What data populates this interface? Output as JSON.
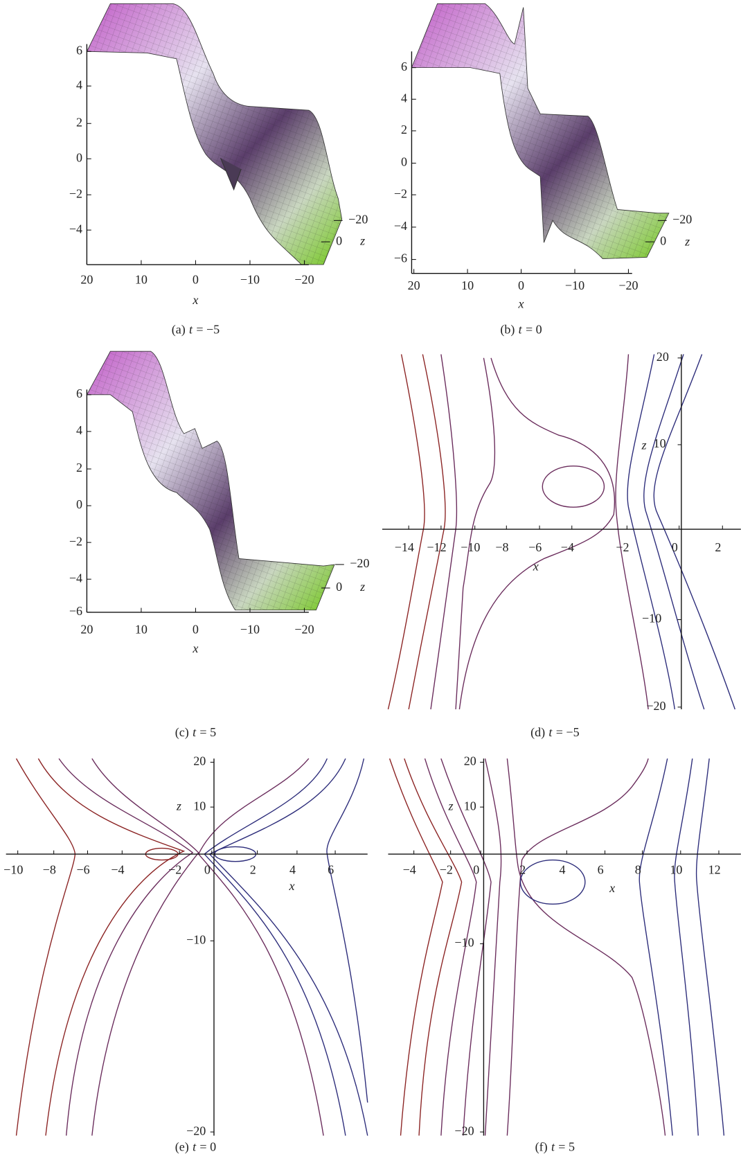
{
  "figure": {
    "panels": [
      {
        "caption": {
          "tag": "(a)",
          "var": "t",
          "eq": "= −5"
        },
        "x_label": "x",
        "z_label": "z",
        "x_ticks": [
          "20",
          "10",
          "0",
          "−10",
          "−20"
        ],
        "y_ticks": [
          "6",
          "4",
          "2",
          "0",
          "−2",
          "−4"
        ],
        "z_ticks": [
          "−20",
          "0"
        ]
      },
      {
        "caption": {
          "tag": "(b)",
          "var": "t",
          "eq": "= 0"
        },
        "x_label": "x",
        "z_label": "z",
        "x_ticks": [
          "20",
          "10",
          "0",
          "−10",
          "−20"
        ],
        "y_ticks": [
          "6",
          "4",
          "2",
          "0",
          "−2",
          "−4",
          "−6"
        ],
        "z_ticks": [
          "−20",
          "0"
        ]
      },
      {
        "caption": {
          "tag": "(c)",
          "var": "t",
          "eq": "= 5"
        },
        "x_label": "x",
        "z_label": "z",
        "x_ticks": [
          "20",
          "10",
          "0",
          "−10",
          "−20"
        ],
        "y_ticks": [
          "6",
          "4",
          "2",
          "0",
          "−2",
          "−4",
          "−6"
        ],
        "z_ticks": [
          "−20",
          "0"
        ]
      },
      {
        "caption": {
          "tag": "(d)",
          "var": "t",
          "eq": "= −5"
        },
        "x_label": "x",
        "z_label": "z",
        "x_ticks": [
          "−14",
          "−12",
          "−10",
          "−8",
          "−6",
          "−4",
          "−2",
          "0",
          "2"
        ],
        "y_ticks": [
          "20",
          "10",
          "−10",
          "−20"
        ]
      },
      {
        "caption": {
          "tag": "(e)",
          "var": "t",
          "eq": "= 0"
        },
        "x_label": "x",
        "z_label": "z",
        "x_ticks": [
          "−10",
          "−8",
          "−6",
          "−4",
          "−2",
          "0",
          "2",
          "4",
          "6"
        ],
        "y_ticks": [
          "20",
          "10",
          "−10",
          "−20"
        ]
      },
      {
        "caption": {
          "tag": "(f)",
          "var": "t",
          "eq": "= 5"
        },
        "x_label": "x",
        "z_label": "z",
        "x_ticks": [
          "−4",
          "−2",
          "0",
          "2",
          "4",
          "6",
          "8",
          "10",
          "12"
        ],
        "y_ticks": [
          "20",
          "10",
          "−10",
          "−20"
        ]
      }
    ]
  }
}
